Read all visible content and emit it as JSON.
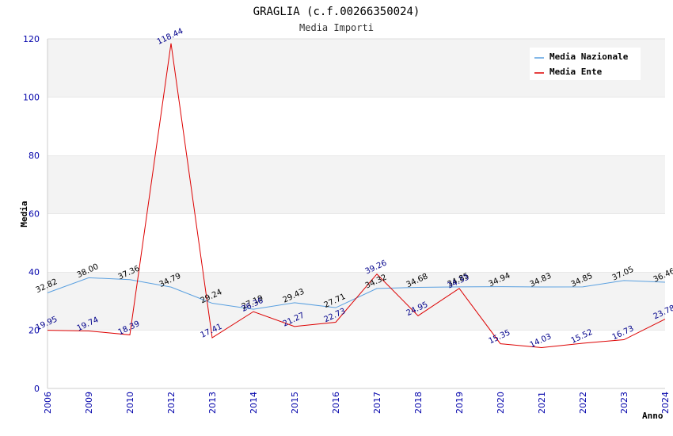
{
  "chart_data": {
    "type": "line",
    "title": "GRAGLIA (c.f.00266350024)",
    "subtitle": "Media Importi",
    "xlabel": "Anno",
    "ylabel": "Media",
    "ylim": [
      0,
      120
    ],
    "yticks": [
      "0",
      "20",
      "40",
      "60",
      "80",
      "100",
      "120"
    ],
    "categories": [
      "2006",
      "2009",
      "2010",
      "2012",
      "2013",
      "2014",
      "2015",
      "2016",
      "2017",
      "2018",
      "2019",
      "2020",
      "2021",
      "2022",
      "2023",
      "2024"
    ],
    "series": [
      {
        "name": "Media Nazionale",
        "color": "#5aa0e0",
        "values": [
          32.82,
          38.0,
          37.36,
          34.79,
          29.24,
          27.19,
          29.43,
          27.71,
          34.32,
          34.68,
          34.85,
          34.94,
          34.83,
          34.85,
          37.05,
          36.46
        ],
        "labels": [
          "32.82",
          "38.00",
          "37.36",
          "34.79",
          "29.24",
          "27.19",
          "29.43",
          "27.71",
          "34.32",
          "34.68",
          "34.85",
          "34.94",
          "34.83",
          "34.85",
          "37.05",
          "36.46"
        ]
      },
      {
        "name": "Media Ente",
        "color": "#dd0000",
        "values": [
          19.95,
          19.74,
          18.39,
          118.44,
          17.41,
          26.36,
          21.27,
          22.73,
          39.26,
          24.95,
          34.33,
          15.35,
          14.03,
          15.52,
          16.73,
          23.78
        ],
        "labels": [
          "19.95",
          "19.74",
          "18.39",
          "118.44",
          "17.41",
          "26.36",
          "21.27",
          "22.73",
          "39.26",
          "24.95",
          "34.33",
          "15.35",
          "14.03",
          "15.52",
          "16.73",
          "23.78"
        ]
      }
    ],
    "legend": "top-right"
  }
}
